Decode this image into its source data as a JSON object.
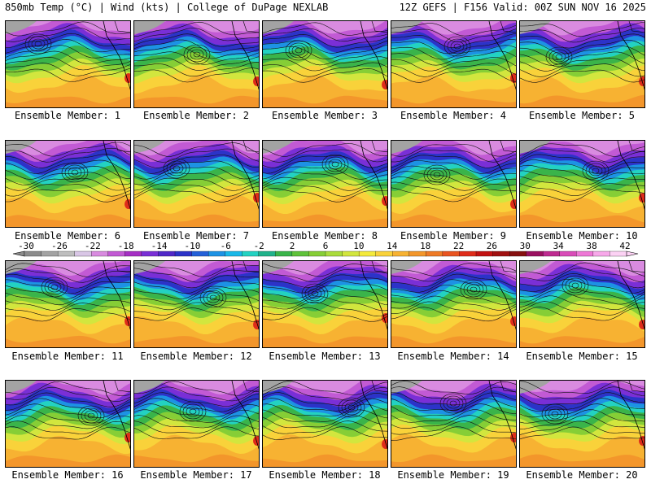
{
  "header": {
    "left": "850mb Temp (°C) | Wind (kts) | College of DuPage NEXLAB",
    "right": "12Z GEFS | F156 Valid: 00Z SUN NOV 16 2025"
  },
  "members": [
    "Ensemble Member: 1",
    "Ensemble Member: 2",
    "Ensemble Member: 3",
    "Ensemble Member: 4",
    "Ensemble Member: 5",
    "Ensemble Member: 6",
    "Ensemble Member: 7",
    "Ensemble Member: 8",
    "Ensemble Member: 9",
    "Ensemble Member: 10",
    "Ensemble Member: 11",
    "Ensemble Member: 12",
    "Ensemble Member: 13",
    "Ensemble Member: 14",
    "Ensemble Member: 15",
    "Ensemble Member: 16",
    "Ensemble Member: 17",
    "Ensemble Member: 18",
    "Ensemble Member: 19",
    "Ensemble Member: 20"
  ],
  "colorbar": {
    "labels": [
      "-30",
      "-26",
      "-22",
      "-18",
      "-14",
      "-10",
      "-6",
      "-2",
      "2",
      "6",
      "10",
      "14",
      "18",
      "22",
      "26",
      "30",
      "34",
      "38",
      "42"
    ],
    "colors": [
      "#8c8c8c",
      "#a3a3a3",
      "#bebebe",
      "#d9c6e6",
      "#d98be0",
      "#c25ad4",
      "#a52fc4",
      "#7a2fd6",
      "#5028c8",
      "#2c33c8",
      "#2460d8",
      "#1d92e4",
      "#19b8e8",
      "#23d2c2",
      "#20b28a",
      "#3ab44a",
      "#5fc23a",
      "#86ce36",
      "#aadc3c",
      "#d2e63e",
      "#f4ea3c",
      "#f9d23a",
      "#f7b232",
      "#f3962b",
      "#ee7a26",
      "#e95420",
      "#df2c1a",
      "#c21212",
      "#a01010",
      "#861010",
      "#9a1060",
      "#be2a90",
      "#d94cb8",
      "#ee78d6",
      "#f8a8ea",
      "#fcd2f4"
    ]
  }
}
